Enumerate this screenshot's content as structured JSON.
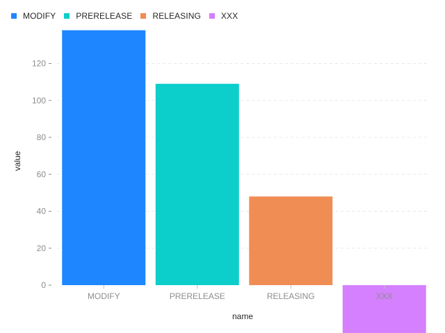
{
  "chart_data": {
    "type": "bar",
    "categories": [
      "MODIFY",
      "PRERELEASE",
      "RELEASING",
      "XXX"
    ],
    "values": [
      138,
      109,
      48,
      -26
    ],
    "colors": [
      "#1E86FF",
      "#0CCECB",
      "#F08D54",
      "#D580FF"
    ],
    "xlabel": "name",
    "ylabel": "value",
    "yticks": [
      0,
      20,
      40,
      60,
      80,
      100,
      120
    ],
    "ylim": [
      -26,
      138
    ],
    "grid": "horizontal dashed",
    "legend_position": "top-left"
  }
}
